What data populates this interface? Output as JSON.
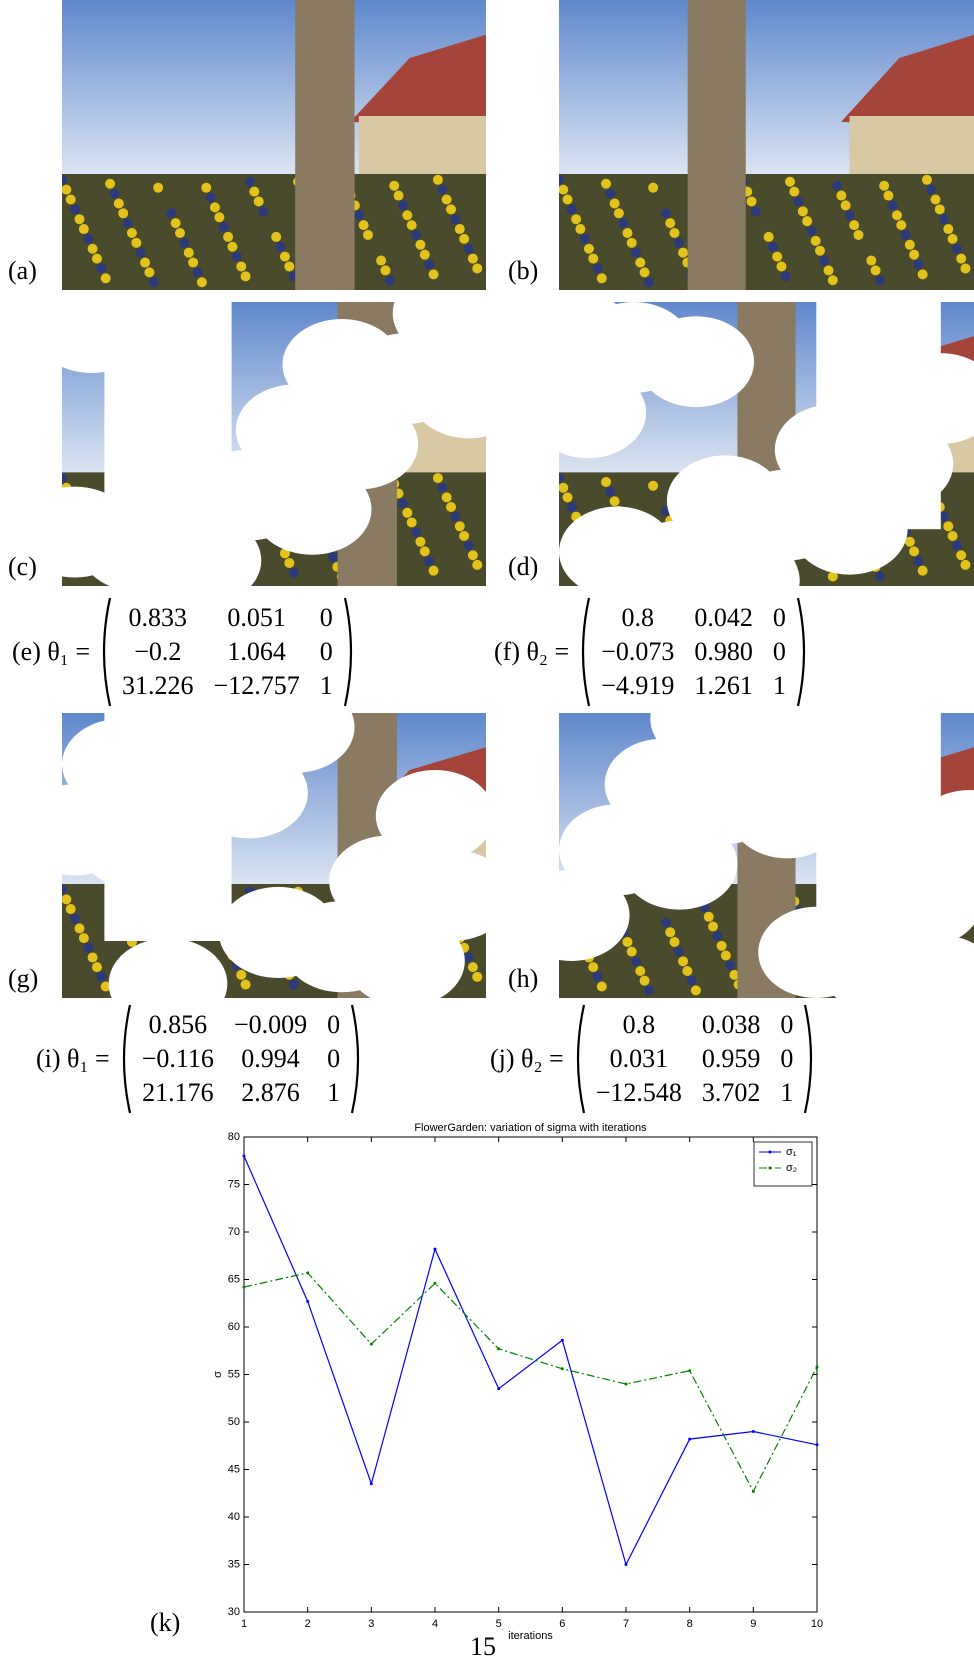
{
  "panels": [
    {
      "label": "(a)"
    },
    {
      "label": "(b)"
    },
    {
      "label": "(c)"
    },
    {
      "label": "(d)"
    },
    {
      "label": "(g)"
    },
    {
      "label": "(h)"
    }
  ],
  "matrices": [
    {
      "label": "(e) θ₁ =",
      "rows": [
        [
          "0.833",
          "0.051",
          "0"
        ],
        [
          "−0.2",
          "1.064",
          "0"
        ],
        [
          "31.226",
          "−12.757",
          "1"
        ]
      ]
    },
    {
      "label": "(f) θ₂ =",
      "rows": [
        [
          "0.8",
          "0.042",
          "0"
        ],
        [
          "−0.073",
          "0.980",
          "0"
        ],
        [
          "−4.919",
          "1.261",
          "1"
        ]
      ]
    },
    {
      "label": "(i) θ₁ =",
      "rows": [
        [
          "0.856",
          "−0.009",
          "0"
        ],
        [
          "−0.116",
          "0.994",
          "0"
        ],
        [
          "21.176",
          "2.876",
          "1"
        ]
      ]
    },
    {
      "label": "(j) θ₂ =",
      "rows": [
        [
          "0.8",
          "0.038",
          "0"
        ],
        [
          "0.031",
          "0.959",
          "0"
        ],
        [
          "−12.548",
          "3.702",
          "1"
        ]
      ]
    }
  ],
  "figure_label": "(k)",
  "chart_data": {
    "type": "line",
    "title": "FlowerGarden: variation of sigma with iterations",
    "x_label": "iterations",
    "y_label": "σ",
    "x": [
      1,
      2,
      3,
      4,
      5,
      6,
      7,
      8,
      9,
      10
    ],
    "xlim": [
      1,
      10
    ],
    "xticks": [
      1,
      2,
      3,
      4,
      5,
      6,
      7,
      8,
      9,
      10
    ],
    "ylim": [
      30,
      80
    ],
    "yticks": [
      30,
      35,
      40,
      45,
      50,
      55,
      60,
      65,
      70,
      75,
      80
    ],
    "legend": "upper right",
    "series": [
      {
        "name": "σ₁",
        "color": "#0000ff",
        "style": "solid",
        "values": [
          78,
          62.7,
          43.5,
          68.2,
          53.5,
          58.6,
          35,
          48.2,
          49,
          47.6
        ]
      },
      {
        "name": "σ₂",
        "color": "#008000",
        "style": "dashdot",
        "values": [
          64.2,
          65.7,
          58.2,
          64.6,
          57.7,
          55.6,
          54,
          55.4,
          42.7,
          55.8
        ]
      }
    ]
  },
  "page_number": "15"
}
